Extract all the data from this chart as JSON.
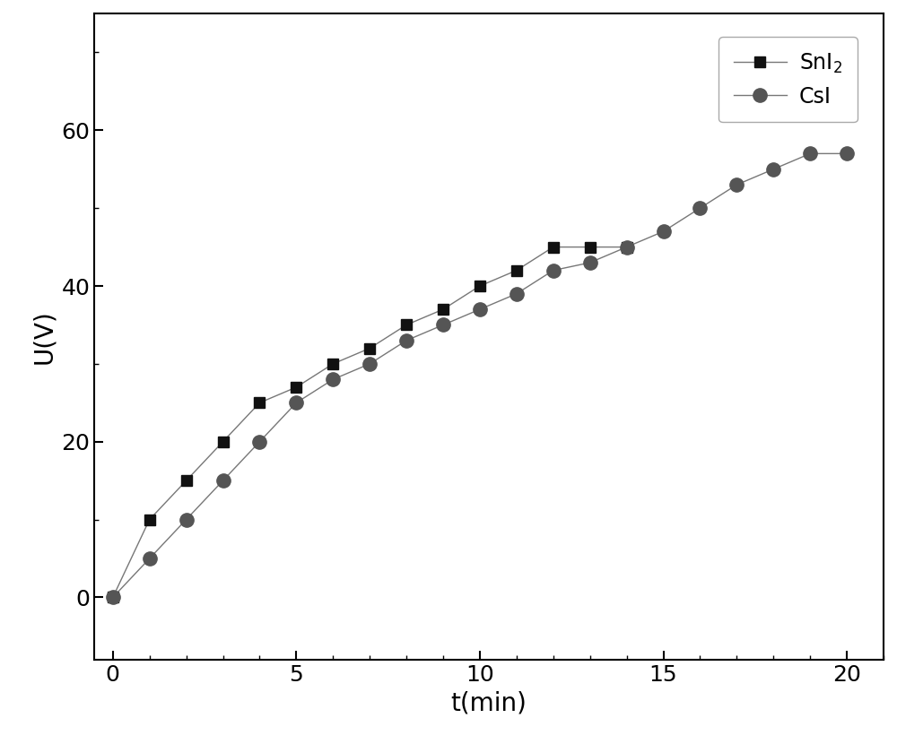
{
  "sni2_x": [
    0,
    1,
    2,
    3,
    4,
    5,
    6,
    7,
    8,
    9,
    10,
    11,
    12,
    13,
    14
  ],
  "sni2_y": [
    0,
    10,
    15,
    20,
    25,
    27,
    30,
    32,
    35,
    37,
    40,
    42,
    45,
    45,
    45
  ],
  "csi_x": [
    0,
    1,
    2,
    3,
    4,
    5,
    6,
    7,
    8,
    9,
    10,
    11,
    12,
    13,
    14,
    15,
    16,
    17,
    18,
    19,
    20
  ],
  "csi_y": [
    0,
    5,
    10,
    15,
    20,
    25,
    28,
    30,
    33,
    35,
    37,
    39,
    42,
    43,
    45,
    47,
    50,
    53,
    55,
    57,
    57
  ],
  "xlabel": "t(min)",
  "ylabel": "U(V)",
  "xlim_min": -0.5,
  "xlim_max": 21,
  "ylim_min": -8,
  "ylim_max": 75,
  "xticks": [
    0,
    5,
    10,
    15,
    20
  ],
  "yticks": [
    0,
    20,
    40,
    60
  ],
  "line_color": "#777777",
  "sni2_marker_color": "#111111",
  "csi_marker_color": "#555555",
  "legend_sni2": "SnI$_2$",
  "legend_csi": "CsI",
  "fig_width": 10.0,
  "fig_height": 8.3,
  "dpi": 100
}
